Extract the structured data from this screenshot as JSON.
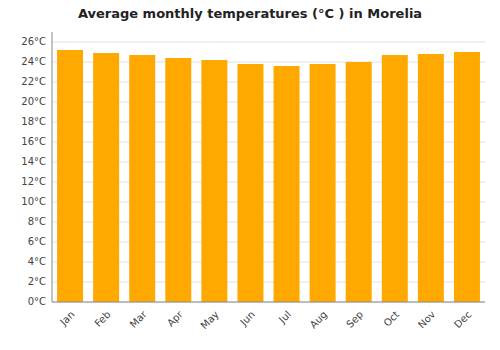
{
  "chart_data": {
    "type": "bar",
    "title": "Average monthly temperatures (°C ) in Morelia",
    "categories": [
      "Jan",
      "Feb",
      "Mar",
      "Apr",
      "May",
      "Jun",
      "Jul",
      "Aug",
      "Sep",
      "Oct",
      "Nov",
      "Dec"
    ],
    "values": [
      25.2,
      24.9,
      24.7,
      24.4,
      24.2,
      23.8,
      23.6,
      23.8,
      24.0,
      24.7,
      24.8,
      25.0
    ],
    "color": "#FFA800",
    "ylim": [
      0,
      27
    ],
    "yticks": [
      {
        "value": 0,
        "label": "0°C"
      },
      {
        "value": 2,
        "label": "2°C"
      },
      {
        "value": 4,
        "label": "4°C"
      },
      {
        "value": 6,
        "label": "6°C"
      },
      {
        "value": 8,
        "label": "8°C"
      },
      {
        "value": 10,
        "label": "10°C"
      },
      {
        "value": 12,
        "label": "12°C"
      },
      {
        "value": 14,
        "label": "14°C"
      },
      {
        "value": 16,
        "label": "16°C"
      },
      {
        "value": 18,
        "label": "18°C"
      },
      {
        "value": 20,
        "label": "20°C"
      },
      {
        "value": 22,
        "label": "22°C"
      },
      {
        "value": 24,
        "label": "24°C"
      },
      {
        "value": 26,
        "label": "26°C"
      }
    ],
    "grid": true
  }
}
